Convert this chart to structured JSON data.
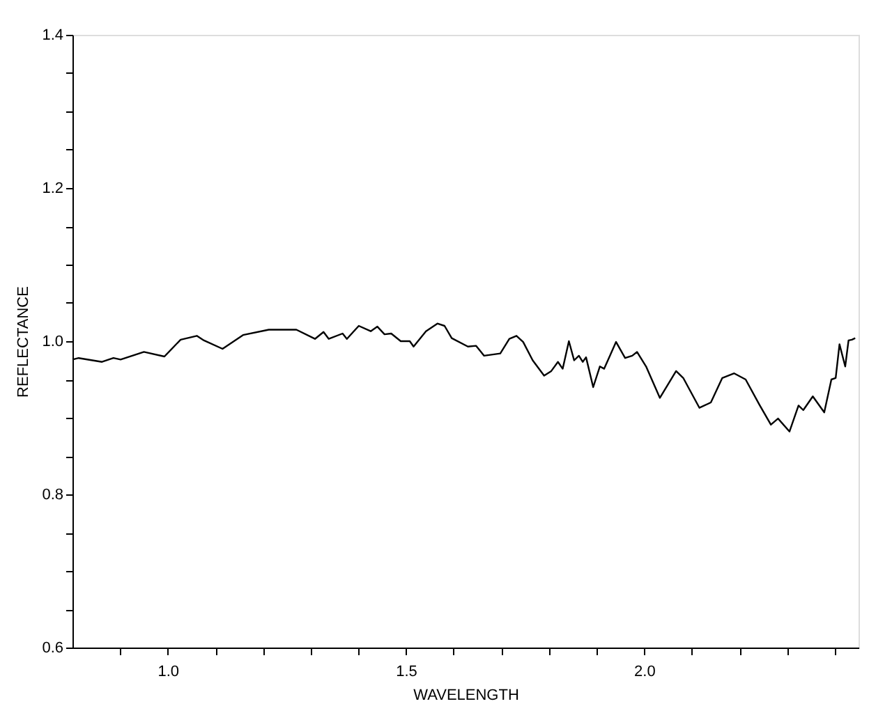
{
  "chart_data": {
    "type": "line",
    "xlabel": "WAVELENGTH",
    "ylabel": "REFLECTANCE",
    "x": [
      0.8,
      0.813,
      0.862,
      0.886,
      0.901,
      0.95,
      0.993,
      1.027,
      1.061,
      1.076,
      1.115,
      1.158,
      1.212,
      1.27,
      1.309,
      1.327,
      1.338,
      1.367,
      1.376,
      1.401,
      1.426,
      1.44,
      1.455,
      1.469,
      1.489,
      1.508,
      1.516,
      1.542,
      1.566,
      1.581,
      1.596,
      1.63,
      1.647,
      1.664,
      1.698,
      1.717,
      1.732,
      1.746,
      1.766,
      1.79,
      1.805,
      1.819,
      1.829,
      1.842,
      1.853,
      1.863,
      1.871,
      1.878,
      1.893,
      1.907,
      1.916,
      1.941,
      1.96,
      1.975,
      1.985,
      2.004,
      2.033,
      2.067,
      2.082,
      2.116,
      2.14,
      2.164,
      2.189,
      2.213,
      2.242,
      2.266,
      2.281,
      2.305,
      2.324,
      2.334,
      2.354,
      2.378,
      2.393,
      2.402,
      2.41,
      2.422,
      2.429,
      2.436,
      2.443
    ],
    "series": [
      {
        "color": "#000000",
        "values": [
          0.976,
          0.978,
          0.973,
          0.978,
          0.976,
          0.986,
          0.98,
          1.002,
          1.007,
          1.001,
          0.99,
          1.008,
          1.015,
          1.015,
          1.003,
          1.012,
          1.003,
          1.01,
          1.003,
          1.02,
          1.013,
          1.019,
          1.009,
          1.01,
          1.0,
          1.0,
          0.993,
          1.013,
          1.023,
          1.02,
          1.004,
          0.993,
          0.994,
          0.981,
          0.984,
          1.003,
          1.007,
          0.999,
          0.975,
          0.955,
          0.961,
          0.973,
          0.964,
          1.0,
          0.975,
          0.981,
          0.973,
          0.979,
          0.94,
          0.967,
          0.964,
          0.999,
          0.978,
          0.981,
          0.986,
          0.967,
          0.926,
          0.961,
          0.952,
          0.913,
          0.92,
          0.952,
          0.958,
          0.95,
          0.917,
          0.891,
          0.899,
          0.882,
          0.916,
          0.91,
          0.928,
          0.907,
          0.95,
          0.952,
          0.996,
          0.967,
          1.001,
          1.002,
          1.004
        ]
      }
    ],
    "xlim": [
      0.8,
      2.45
    ],
    "ylim": [
      0.6,
      1.4
    ],
    "xticks": [
      {
        "value": 0.9,
        "label": null
      },
      {
        "value": 1.0,
        "label": "1.0"
      },
      {
        "value": 1.1,
        "label": null
      },
      {
        "value": 1.2,
        "label": null
      },
      {
        "value": 1.3,
        "label": null
      },
      {
        "value": 1.4,
        "label": null
      },
      {
        "value": 1.5,
        "label": "1.5"
      },
      {
        "value": 1.6,
        "label": null
      },
      {
        "value": 1.7,
        "label": null
      },
      {
        "value": 1.8,
        "label": null
      },
      {
        "value": 1.9,
        "label": null
      },
      {
        "value": 2.0,
        "label": "2.0"
      },
      {
        "value": 2.1,
        "label": null
      },
      {
        "value": 2.2,
        "label": null
      },
      {
        "value": 2.3,
        "label": null
      },
      {
        "value": 2.4,
        "label": null
      }
    ],
    "yticks": [
      {
        "value": 0.6,
        "label": "0.6"
      },
      {
        "value": 0.65,
        "label": null
      },
      {
        "value": 0.7,
        "label": null
      },
      {
        "value": 0.75,
        "label": null
      },
      {
        "value": 0.8,
        "label": "0.8"
      },
      {
        "value": 0.85,
        "label": null
      },
      {
        "value": 0.9,
        "label": null
      },
      {
        "value": 0.95,
        "label": null
      },
      {
        "value": 1.0,
        "label": "1.0"
      },
      {
        "value": 1.05,
        "label": null
      },
      {
        "value": 1.1,
        "label": null
      },
      {
        "value": 1.15,
        "label": null
      },
      {
        "value": 1.2,
        "label": "1.2"
      },
      {
        "value": 1.25,
        "label": null
      },
      {
        "value": 1.3,
        "label": null
      },
      {
        "value": 1.35,
        "label": null
      },
      {
        "value": 1.4,
        "label": "1.4"
      }
    ],
    "grid": false,
    "marker": "none",
    "line_style": "solid"
  }
}
